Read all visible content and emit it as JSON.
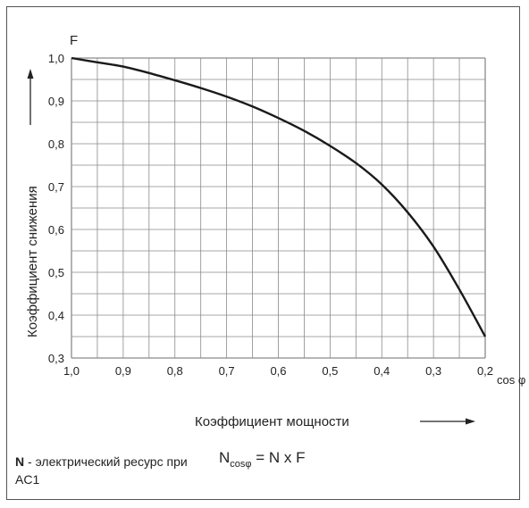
{
  "chart_data": {
    "type": "line",
    "y_axis_symbol": "F",
    "x_axis_symbol": "cos φ",
    "ylabel": "Коэффициент снижения",
    "xlabel": "Коэффициент мощности",
    "x_ticks": [
      "1,0",
      "0,9",
      "0,8",
      "0,7",
      "0,6",
      "0,5",
      "0,4",
      "0,3",
      "0,2"
    ],
    "y_ticks": [
      "0,3",
      "0,4",
      "0,5",
      "0,6",
      "0,7",
      "0,8",
      "0,9",
      "1,0"
    ],
    "xlim": [
      1.0,
      0.2
    ],
    "ylim": [
      0.3,
      1.0
    ],
    "x_reversed": true,
    "grid": true,
    "series": [
      {
        "x": [
          1.0,
          0.95,
          0.9,
          0.85,
          0.8,
          0.75,
          0.7,
          0.65,
          0.6,
          0.55,
          0.5,
          0.45,
          0.4,
          0.35,
          0.3,
          0.25,
          0.2
        ],
        "y": [
          1.0,
          0.99,
          0.98,
          0.965,
          0.948,
          0.93,
          0.91,
          0.887,
          0.86,
          0.83,
          0.795,
          0.755,
          0.705,
          0.64,
          0.56,
          0.46,
          0.35
        ]
      }
    ]
  },
  "note": {
    "bold": "N",
    "text": " - электрический ресурс при AC1"
  },
  "formula": {
    "main": "N",
    "subscript": "cosφ",
    "rest": " = N x F"
  }
}
